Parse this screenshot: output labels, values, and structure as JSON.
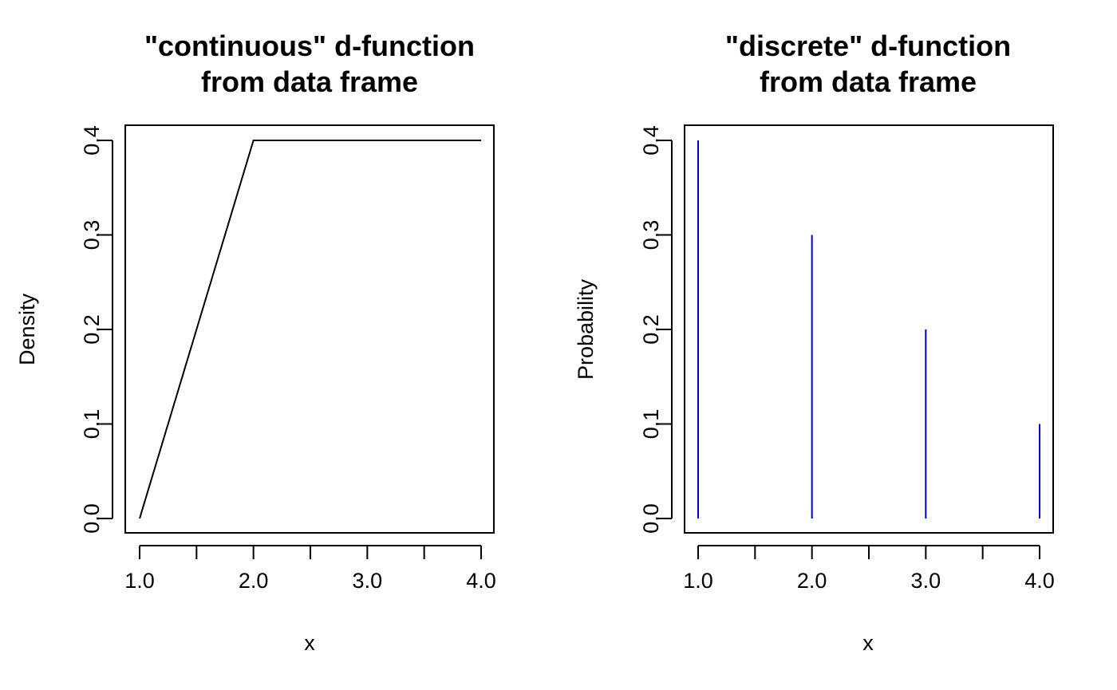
{
  "chart_data": [
    {
      "type": "line",
      "title": [
        "\"continuous\" d-function",
        "from data frame"
      ],
      "xlabel": "x",
      "ylabel": "Density",
      "xlim": [
        1,
        4
      ],
      "ylim": [
        0,
        0.4
      ],
      "x_ticks": [
        1.0,
        1.5,
        2.0,
        2.5,
        3.0,
        3.5,
        4.0
      ],
      "x_tick_labels": [
        "1.0",
        "",
        "2.0",
        "",
        "3.0",
        "",
        "4.0"
      ],
      "y_ticks": [
        0.0,
        0.1,
        0.2,
        0.3,
        0.4
      ],
      "y_tick_labels": [
        "0.0",
        "0.1",
        "0.2",
        "0.3",
        "0.4"
      ],
      "grid": false,
      "line_color": "#000000",
      "series": [
        {
          "x": [
            1,
            2,
            3,
            4
          ],
          "y": [
            0.0,
            0.4,
            0.4,
            0.4
          ]
        }
      ]
    },
    {
      "type": "bar",
      "title": [
        "\"discrete\" d-function",
        "from data frame"
      ],
      "xlabel": "x",
      "ylabel": "Probability",
      "xlim": [
        1,
        4
      ],
      "ylim": [
        0,
        0.4
      ],
      "x_ticks": [
        1.0,
        1.5,
        2.0,
        2.5,
        3.0,
        3.5,
        4.0
      ],
      "x_tick_labels": [
        "1.0",
        "",
        "2.0",
        "",
        "3.0",
        "",
        "4.0"
      ],
      "y_ticks": [
        0.0,
        0.1,
        0.2,
        0.3,
        0.4
      ],
      "y_tick_labels": [
        "0.0",
        "0.1",
        "0.2",
        "0.3",
        "0.4"
      ],
      "grid": false,
      "line_color": "#0000cc",
      "series": [
        {
          "x": [
            1,
            2,
            3,
            4
          ],
          "y": [
            0.4,
            0.3,
            0.2,
            0.1
          ]
        }
      ]
    }
  ]
}
